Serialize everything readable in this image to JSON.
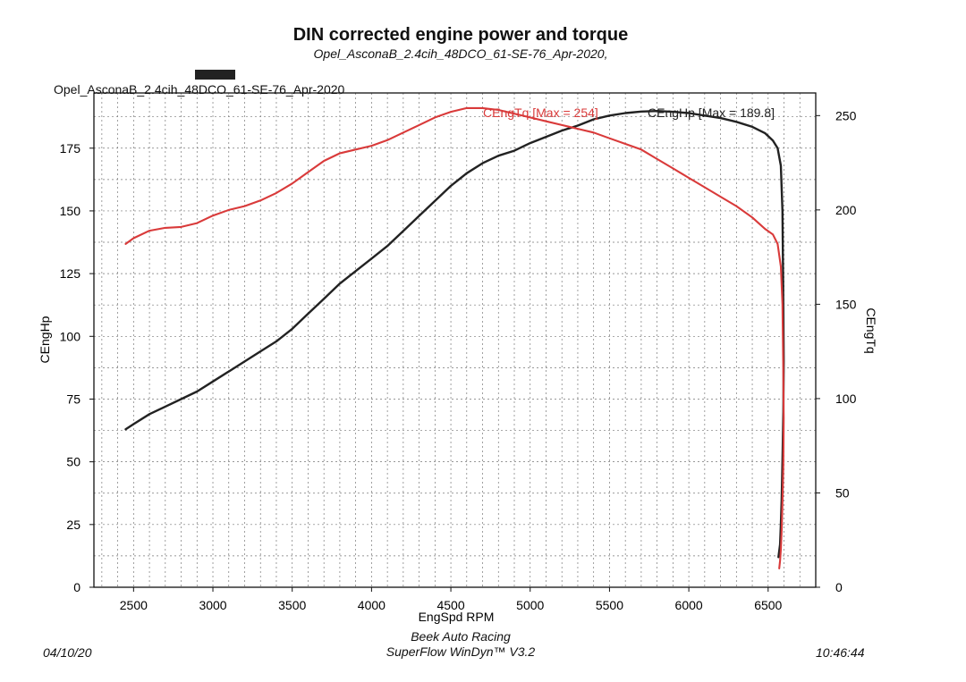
{
  "page": {
    "title": "DIN corrected engine power and torque",
    "subtitle": "Opel_AsconaB_2.4cih_48DCO_61-SE-76_Apr-2020,",
    "run_label": "Opel_AsconaB_2.4cih_48DCO_61-SE-76_Apr-2020",
    "footer_date": "04/10/20",
    "footer_company": "Beek Auto Racing",
    "footer_software": "SuperFlow WinDyn™ V3.2",
    "footer_time": "10:46:44"
  },
  "chart_data": {
    "type": "line",
    "xlabel": "EngSpd RPM",
    "ylabel_left": "CEngHp",
    "ylabel_right": "CEngTq",
    "xlim": [
      2250,
      6800
    ],
    "ylim_left": [
      0,
      197
    ],
    "ylim_right": [
      0,
      262
    ],
    "x_ticks": [
      2500,
      3000,
      3500,
      4000,
      4500,
      5000,
      5500,
      6000,
      6500
    ],
    "y_ticks_left": [
      0,
      25,
      50,
      75,
      100,
      125,
      150,
      175
    ],
    "y_ticks_right": [
      0,
      50,
      100,
      150,
      200,
      250
    ],
    "grid": true,
    "colors": {
      "power": "#222222",
      "torque": "#d93a3a",
      "legend_marker": "#222222"
    },
    "series": [
      {
        "name": "CEngHp",
        "legend": "CEngHp [Max = 189.8]",
        "axis": "left",
        "x": [
          2450,
          2500,
          2600,
          2700,
          2800,
          2900,
          3000,
          3100,
          3200,
          3300,
          3400,
          3500,
          3600,
          3700,
          3800,
          3900,
          4000,
          4100,
          4200,
          4300,
          4400,
          4500,
          4600,
          4700,
          4800,
          4900,
          5000,
          5100,
          5200,
          5300,
          5400,
          5500,
          5600,
          5700,
          5800,
          5900,
          6000,
          6100,
          6200,
          6300,
          6400,
          6480,
          6530,
          6560,
          6580,
          6590,
          6595,
          6598,
          6596,
          6590,
          6585,
          6580,
          6575,
          6565
        ],
        "y": [
          63,
          65,
          69,
          72,
          75,
          78,
          82,
          86,
          90,
          94,
          98,
          103,
          109,
          115,
          121,
          126,
          131,
          136,
          142,
          148,
          154,
          160,
          165,
          169,
          172,
          174,
          177,
          179.5,
          182,
          184,
          186.5,
          188,
          189,
          189.6,
          189.8,
          189.5,
          189,
          188,
          187,
          185.5,
          183.5,
          181,
          178,
          175,
          168,
          150,
          120,
          90,
          70,
          50,
          35,
          25,
          17,
          12
        ]
      },
      {
        "name": "CEngTq",
        "legend": "CEngTq [Max = 254]",
        "axis": "right",
        "x": [
          2450,
          2500,
          2600,
          2700,
          2800,
          2900,
          3000,
          3100,
          3200,
          3300,
          3400,
          3500,
          3600,
          3700,
          3800,
          3900,
          4000,
          4100,
          4200,
          4300,
          4400,
          4500,
          4600,
          4700,
          4800,
          4900,
          5000,
          5100,
          5200,
          5300,
          5400,
          5500,
          5600,
          5700,
          5800,
          5900,
          6000,
          6100,
          6200,
          6300,
          6400,
          6480,
          6530,
          6560,
          6580,
          6590,
          6595,
          6598,
          6596,
          6590,
          6585,
          6580,
          6575,
          6570
        ],
        "y": [
          182,
          185,
          189,
          190.5,
          191,
          193,
          197,
          200,
          202,
          205,
          209,
          214,
          220,
          226,
          230,
          232,
          234,
          237,
          241,
          245,
          249,
          252,
          254,
          254,
          253,
          251,
          249,
          247,
          245,
          243,
          241,
          238,
          235,
          232,
          227,
          222,
          217,
          212,
          207,
          202,
          196,
          190,
          187,
          182,
          170,
          150,
          120,
          90,
          65,
          45,
          30,
          20,
          14,
          10
        ]
      }
    ]
  }
}
